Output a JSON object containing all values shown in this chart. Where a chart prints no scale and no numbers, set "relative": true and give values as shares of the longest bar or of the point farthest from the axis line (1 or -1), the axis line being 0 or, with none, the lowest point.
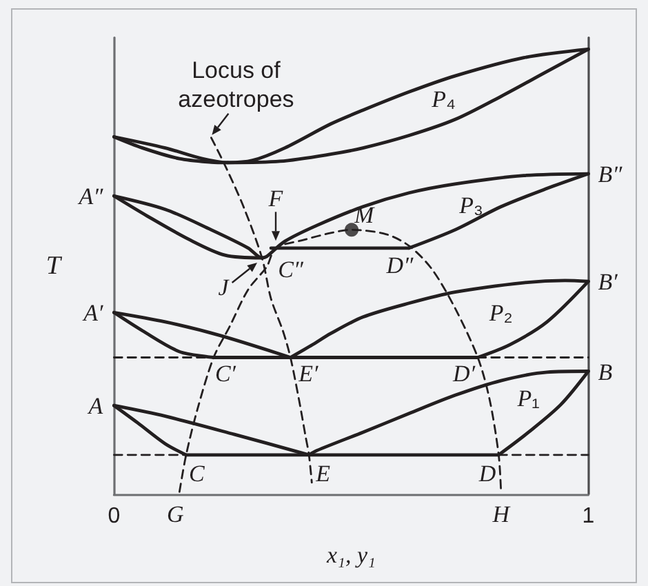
{
  "chart_data": {
    "type": "line",
    "relative": true,
    "xlabel": "x₁, y₁",
    "ylabel": "T",
    "xlim": [
      0,
      1
    ],
    "xticks": [
      0,
      1
    ],
    "grid": false,
    "marker": "none",
    "line_style": "solid",
    "annotations": [
      {
        "text": "Locus of azeotropes",
        "x": 0.205,
        "y": 0.801
      },
      {
        "text": "A",
        "x": 0,
        "y": 0.199
      },
      {
        "text": "A′",
        "x": 0,
        "y": 0.408
      },
      {
        "text": "A″",
        "x": 0,
        "y": 0.67
      },
      {
        "text": "B",
        "x": 1,
        "y": 0.276
      },
      {
        "text": "B′",
        "x": 1,
        "y": 0.478
      },
      {
        "text": "B″",
        "x": 1,
        "y": 0.72
      },
      {
        "text": "C",
        "x": 0.152,
        "y": 0.088
      },
      {
        "text": "D",
        "x": 0.811,
        "y": 0.088
      },
      {
        "text": "E",
        "x": 0.411,
        "y": 0.088
      },
      {
        "text": "C′",
        "x": 0.21,
        "y": 0.307
      },
      {
        "text": "D′",
        "x": 0.767,
        "y": 0.307
      },
      {
        "text": "E′",
        "x": 0.372,
        "y": 0.307
      },
      {
        "text": "C″",
        "x": 0.331,
        "y": 0.553
      },
      {
        "text": "D″",
        "x": 0.622,
        "y": 0.553
      },
      {
        "text": "F",
        "x": 0.341,
        "y": 0.563
      },
      {
        "text": "J",
        "x": 0.312,
        "y": 0.531
      },
      {
        "text": "M",
        "x": 0.501,
        "y": 0.594
      },
      {
        "text": "G",
        "x": 0.138,
        "y": 0
      },
      {
        "text": "H",
        "x": 0.816,
        "y": 0
      },
      "P₄",
      "P₃",
      "P₂",
      "P₁"
    ],
    "series": [
      {
        "color": "#231f20",
        "x": [
          0,
          0.108,
          0.186,
          0.24,
          0.292,
          0.36,
          0.457,
          0.525,
          0.622,
          0.719,
          0.864,
          1
        ],
        "values": [
          0.803,
          0.778,
          0.754,
          0.745,
          0.75,
          0.778,
          0.832,
          0.863,
          0.904,
          0.94,
          0.981,
          1
        ]
      },
      {
        "color": "#231f20",
        "x": [
          0,
          0.06,
          0.138,
          0.205,
          0.24
        ],
        "values": [
          0.803,
          0.778,
          0.754,
          0.746,
          0.745
        ]
      },
      {
        "color": "#231f20",
        "x": [
          0.24,
          0.35,
          0.457,
          0.525,
          0.622,
          0.719,
          0.816,
          0.913,
          1
        ],
        "values": [
          0.745,
          0.748,
          0.764,
          0.778,
          0.806,
          0.842,
          0.894,
          0.95,
          1
        ]
      },
      {
        "color": "#231f20",
        "x": [
          0,
          0.108,
          0.205,
          0.283,
          0.312,
          0.322,
          0.36,
          0.428,
          0.525,
          0.622,
          0.719,
          0.864,
          1
        ],
        "values": [
          0.67,
          0.64,
          0.594,
          0.553,
          0.531,
          0.534,
          0.568,
          0.604,
          0.646,
          0.677,
          0.697,
          0.716,
          0.72
        ]
      },
      {
        "color": "#231f20",
        "x": [
          0,
          0.07,
          0.157,
          0.234,
          0.312
        ],
        "values": [
          0.67,
          0.625,
          0.573,
          0.537,
          0.531
        ]
      },
      {
        "color": "#231f20",
        "x": [
          0.331,
          0.622
        ],
        "values": [
          0.553,
          0.553
        ]
      },
      {
        "color": "#231f20",
        "x": [
          0.622,
          0.719,
          0.816,
          0.913,
          1
        ],
        "values": [
          0.553,
          0.594,
          0.646,
          0.687,
          0.72
        ]
      },
      {
        "color": "#231f20",
        "line_style": "dashed",
        "x": [
          0.138,
          0.152,
          0.176,
          0.21,
          0.244,
          0.283,
          0.322,
          0.341,
          0.399,
          0.457,
          0.501,
          0.574,
          0.622,
          0.67,
          0.719,
          0.767,
          0.792,
          0.811,
          0.816
        ],
        "values": [
          0.005,
          0.088,
          0.191,
          0.307,
          0.377,
          0.46,
          0.511,
          0.553,
          0.571,
          0.587,
          0.594,
          0.584,
          0.558,
          0.506,
          0.418,
          0.307,
          0.212,
          0.088,
          0.005
        ]
      },
      {
        "color": "#231f20",
        "line_style": "dashed",
        "x": [
          0.205,
          0.234,
          0.273,
          0.312,
          0.331,
          0.356,
          0.372,
          0.39,
          0.404,
          0.411,
          0.417
        ],
        "values": [
          0.801,
          0.739,
          0.646,
          0.531,
          0.439,
          0.367,
          0.307,
          0.212,
          0.129,
          0.088,
          0.026
        ]
      },
      {
        "color": "#231f20",
        "x": [
          0,
          0.108,
          0.225,
          0.372
        ],
        "values": [
          0.408,
          0.387,
          0.356,
          0.307
        ]
      },
      {
        "color": "#231f20",
        "x": [
          0,
          0.06,
          0.138,
          0.201,
          0.21
        ],
        "values": [
          0.408,
          0.367,
          0.32,
          0.308,
          0.307
        ]
      },
      {
        "color": "#231f20",
        "x": [
          0.21,
          0.767
        ],
        "values": [
          0.307,
          0.307
        ]
      },
      {
        "color": "#231f20",
        "line_style": "dashed",
        "x": [
          0,
          0.21
        ],
        "values": [
          0.307,
          0.307
        ]
      },
      {
        "color": "#231f20",
        "line_style": "dashed",
        "x": [
          0.767,
          1
        ],
        "values": [
          0.307,
          0.307
        ]
      },
      {
        "color": "#231f20",
        "x": [
          0.372,
          0.419,
          0.457,
          0.525,
          0.622,
          0.719,
          0.864,
          0.951,
          1
        ],
        "values": [
          0.307,
          0.336,
          0.361,
          0.398,
          0.429,
          0.454,
          0.475,
          0.48,
          0.478
        ]
      },
      {
        "color": "#231f20",
        "x": [
          0.767,
          0.835,
          0.913,
          1
        ],
        "values": [
          0.307,
          0.336,
          0.387,
          0.478
        ]
      },
      {
        "color": "#231f20",
        "x": [
          0,
          0.108,
          0.254,
          0.411
        ],
        "values": [
          0.199,
          0.175,
          0.134,
          0.088
        ]
      },
      {
        "color": "#231f20",
        "x": [
          0,
          0.05,
          0.108,
          0.152
        ],
        "values": [
          0.199,
          0.16,
          0.113,
          0.088
        ]
      },
      {
        "color": "#231f20",
        "x": [
          0.152,
          0.811
        ],
        "values": [
          0.088,
          0.088
        ]
      },
      {
        "color": "#231f20",
        "line_style": "dashed",
        "x": [
          0,
          0.152
        ],
        "values": [
          0.088,
          0.088
        ]
      },
      {
        "color": "#231f20",
        "line_style": "dashed",
        "x": [
          0.811,
          1
        ],
        "values": [
          0.088,
          0.088
        ]
      },
      {
        "color": "#231f20",
        "x": [
          0.411,
          0.428,
          0.525,
          0.622,
          0.719,
          0.816,
          0.913,
          1
        ],
        "values": [
          0.088,
          0.098,
          0.139,
          0.181,
          0.222,
          0.255,
          0.274,
          0.276
        ]
      },
      {
        "color": "#231f20",
        "x": [
          0.811,
          0.874,
          0.942,
          1
        ],
        "values": [
          0.088,
          0.139,
          0.201,
          0.276
        ]
      },
      {
        "type": "scatter",
        "marker": "circle",
        "color": "#231f20",
        "x": [
          0.501
        ],
        "values": [
          0.594
        ]
      }
    ]
  }
}
